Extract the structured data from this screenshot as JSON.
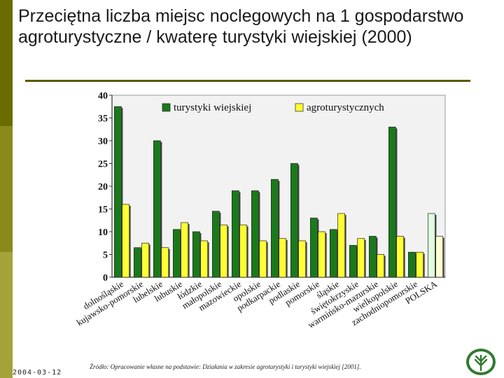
{
  "slide": {
    "title": "Przeciętna liczba miejsc noclegowych na 1 gospodarstwo agroturystyczne / kwaterę turystyki wiejskiej (2000)",
    "date": "2004-03-12",
    "source": "Źródło: Opracowanie własne na podstawie: Działania w zakresie agroturystyki i turystyki wiejskiej [2001].",
    "logo_icon": "wheat-emblem-icon"
  },
  "colors": {
    "series1": "#1a7a1a",
    "series2": "#ffff33",
    "plot_bg": "#f2f2f2",
    "side_bar": "#6b6b00"
  },
  "chart_data": {
    "type": "bar",
    "categories": [
      "dolnośląskie",
      "kujawsko-pomorskie",
      "lubelskie",
      "lubuskie",
      "łódzkie",
      "małopolskie",
      "mazowieckie",
      "opolskie",
      "podkarpackie",
      "podlaskie",
      "pomorskie",
      "śląskie",
      "świętokrzyskie",
      "warmińsko-mazurskie",
      "wielkopolskie",
      "zachodniopomorskie",
      "POLSKA"
    ],
    "series": [
      {
        "name": "turystyki wiejskiej",
        "values": [
          37.5,
          6.5,
          30,
          10.5,
          10,
          14.5,
          19,
          19,
          21.5,
          25,
          13,
          10.5,
          7,
          9,
          33,
          5.5,
          14
        ]
      },
      {
        "name": "agroturystycznych",
        "values": [
          16,
          7.5,
          6.5,
          12,
          8,
          11.5,
          11.5,
          8,
          8.5,
          8,
          10,
          14,
          8.5,
          5,
          9,
          5.5,
          9
        ]
      }
    ],
    "ylim": [
      0,
      40
    ],
    "yticks": [
      "0",
      "5",
      "10",
      "15",
      "20",
      "25",
      "30",
      "35",
      "40"
    ],
    "legend_placement": "top",
    "grid": false
  }
}
